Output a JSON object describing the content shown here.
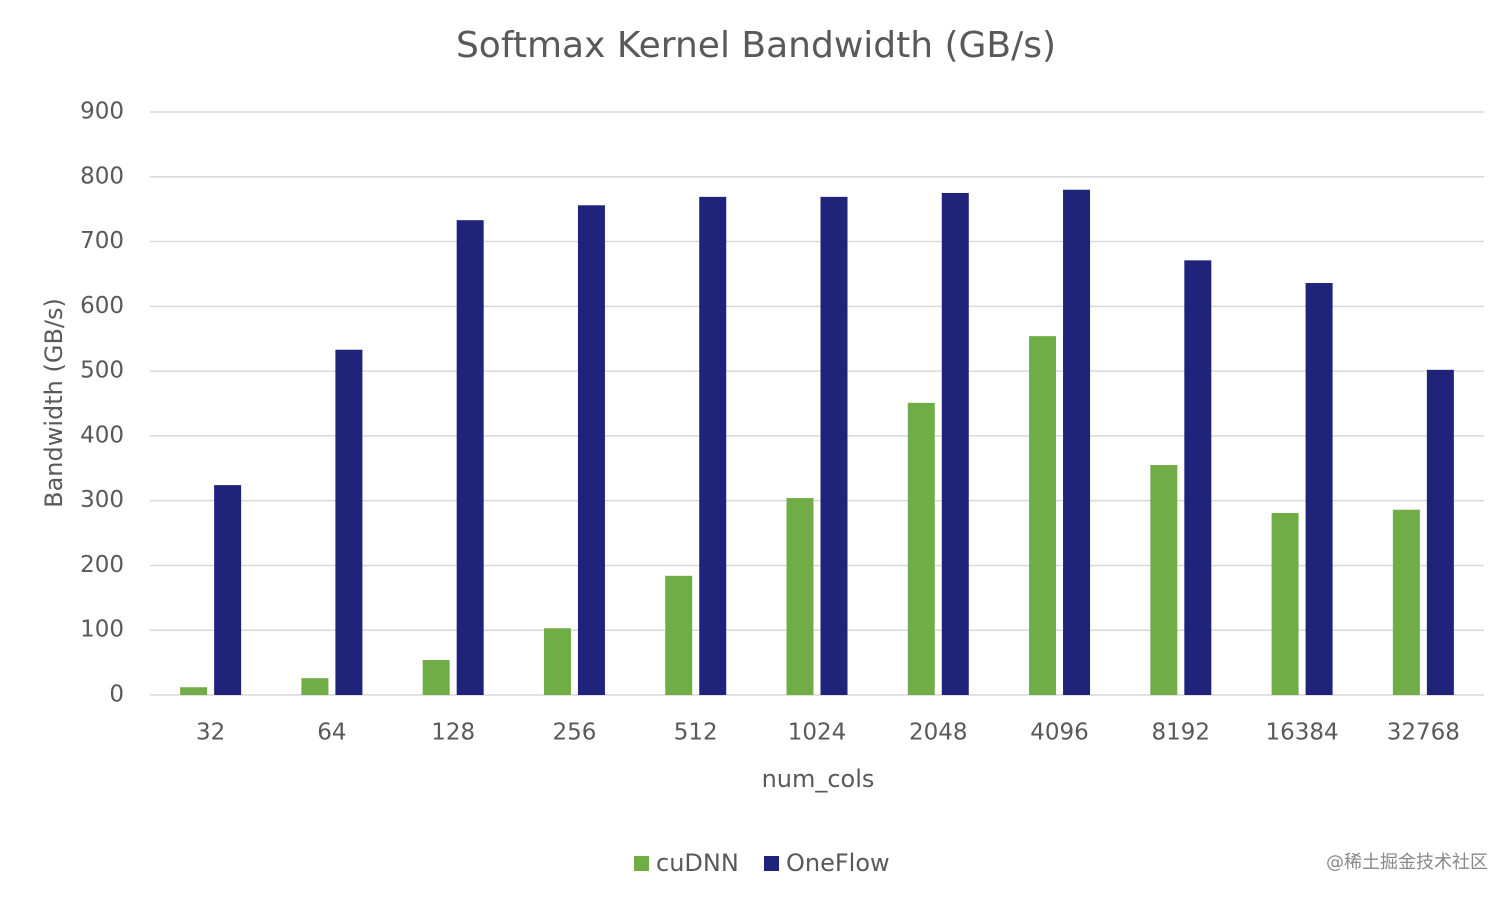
{
  "chart_data": {
    "type": "bar",
    "title": "Softmax Kernel Bandwidth (GB/s)",
    "x_label": "num_cols",
    "y_label": "Bandwidth (GB/s)",
    "categories": [
      "32",
      "64",
      "128",
      "256",
      "512",
      "1024",
      "2048",
      "4096",
      "8192",
      "16384",
      "32768"
    ],
    "series": [
      {
        "name": "cuDNN",
        "color": "#70ad47",
        "values": [
          12,
          26,
          54,
          103,
          184,
          304,
          451,
          554,
          355,
          281,
          286
        ]
      },
      {
        "name": "OneFlow",
        "color": "#1f237a",
        "values": [
          324,
          533,
          733,
          756,
          769,
          769,
          775,
          780,
          671,
          636,
          502
        ]
      }
    ],
    "ylim": [
      0,
      900
    ],
    "yticks": [
      0,
      100,
      200,
      300,
      400,
      500,
      600,
      700,
      800,
      900
    ],
    "grid": true,
    "legend": "bottom",
    "watermark": "@稀土掘金技术社区"
  }
}
